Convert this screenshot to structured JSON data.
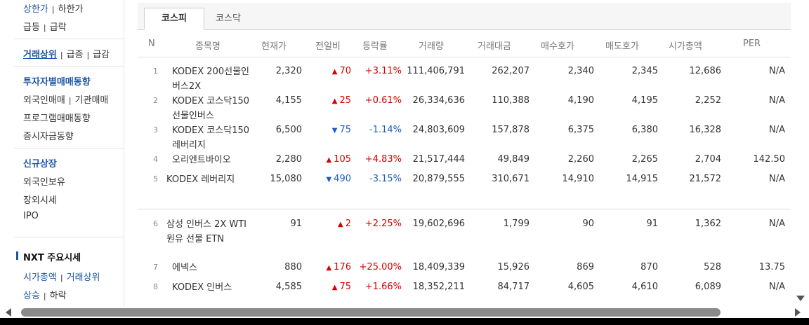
{
  "sidebar": {
    "g1": [
      "상한가",
      "하한가"
    ],
    "g2": [
      "급등",
      "급락"
    ],
    "g3": [
      "거래상위",
      "급증",
      "급감"
    ],
    "g4": [
      "투자자별매매동향",
      "외국인매매",
      "기관매매",
      "프로그램매매동향",
      "증시자금동향"
    ],
    "g5": [
      "신규상장",
      "외국인보유",
      "장외시세",
      "IPO"
    ],
    "nxt_title": "NXT 주요시세",
    "g6": [
      "시가총액",
      "거래상위"
    ],
    "g7": [
      "상승",
      "하락"
    ]
  },
  "tabs": [
    "코스피",
    "코스닥"
  ],
  "headers": [
    "N",
    "종목명",
    "현재가",
    "전일비",
    "등락률",
    "거래량",
    "거래대금",
    "매수호가",
    "매도호가",
    "시가총액",
    "PER"
  ],
  "rows": [
    {
      "n": "1",
      "name": "KODEX 200선물인버스2X",
      "price": "2,320",
      "dir": "up",
      "change": "70",
      "rate": "+3.11%",
      "volume": "111,406,791",
      "amount": "262,207",
      "bid": "2,340",
      "ask": "2,345",
      "cap": "12,686",
      "per": "N/A"
    },
    {
      "n": "2",
      "name": "KODEX 코스닥150선물인버스",
      "price": "4,155",
      "dir": "up",
      "change": "25",
      "rate": "+0.61%",
      "volume": "26,334,636",
      "amount": "110,388",
      "bid": "4,190",
      "ask": "4,195",
      "cap": "2,252",
      "per": "N/A"
    },
    {
      "n": "3",
      "name": "KODEX 코스닥150레버리지",
      "price": "6,500",
      "dir": "down",
      "change": "75",
      "rate": "-1.14%",
      "volume": "24,803,609",
      "amount": "157,878",
      "bid": "6,375",
      "ask": "6,380",
      "cap": "16,328",
      "per": "N/A"
    },
    {
      "n": "4",
      "name": "오리엔트바이오",
      "price": "2,280",
      "dir": "up",
      "change": "105",
      "rate": "+4.83%",
      "volume": "21,517,444",
      "amount": "49,849",
      "bid": "2,260",
      "ask": "2,265",
      "cap": "2,704",
      "per": "142.50"
    },
    {
      "n": "5",
      "name": "KODEX 레버리지",
      "price": "15,080",
      "dir": "down",
      "change": "490",
      "rate": "-3.15%",
      "volume": "20,879,555",
      "amount": "310,671",
      "bid": "14,910",
      "ask": "14,915",
      "cap": "21,572",
      "per": "N/A"
    },
    {
      "n": "6",
      "name": "삼성 인버스 2X WTI원유 선물 ETN",
      "price": "91",
      "dir": "up",
      "change": "2",
      "rate": "+2.25%",
      "volume": "19,602,696",
      "amount": "1,799",
      "bid": "90",
      "ask": "91",
      "cap": "1,362",
      "per": "N/A"
    },
    {
      "n": "7",
      "name": "에넥스",
      "price": "880",
      "dir": "up",
      "change": "176",
      "rate": "+25.00%",
      "volume": "18,409,339",
      "amount": "15,926",
      "bid": "869",
      "ask": "870",
      "cap": "528",
      "per": "13.75"
    },
    {
      "n": "8",
      "name": "KODEX 인버스",
      "price": "4,585",
      "dir": "up",
      "change": "75",
      "rate": "+1.66%",
      "volume": "18,352,211",
      "amount": "84,717",
      "bid": "4,605",
      "ask": "4,610",
      "cap": "6,089",
      "per": "N/A"
    }
  ],
  "colors": {
    "up": "#d60000",
    "down": "#1d5dc1",
    "link": "#1e56a5"
  },
  "icons": {
    "up": "up-triangle-icon",
    "down": "down-triangle-icon"
  }
}
